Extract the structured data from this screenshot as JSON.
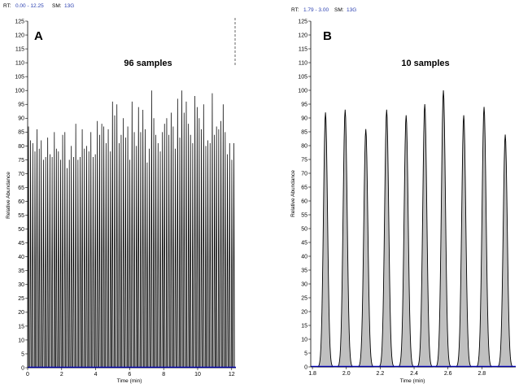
{
  "chart_data": [
    {
      "type": "line",
      "panel_label": "A",
      "title": "96 samples",
      "header": {
        "rt_label": "RT:",
        "rt_value": "0.00 - 12.25",
        "sm_label": "SM:",
        "sm_value": "13G"
      },
      "xlabel": "Time (min)",
      "ylabel": "Relative Abundance",
      "xlim": [
        0,
        12.25
      ],
      "ylim": [
        0,
        125
      ],
      "x_ticks": [
        "0",
        "2",
        "4",
        "6",
        "8",
        "10",
        "12"
      ],
      "y_ticks": [
        "0",
        "5",
        "10",
        "15",
        "20",
        "25",
        "30",
        "35",
        "40",
        "45",
        "50",
        "55",
        "60",
        "65",
        "70",
        "75",
        "80",
        "85",
        "90",
        "95",
        "100",
        "105",
        "110",
        "115",
        "120",
        "125"
      ],
      "line_color": "#000000",
      "baseline_color": "#0000ff",
      "series": [
        {
          "peak_rt": [
            0.05,
            0.17,
            0.3,
            0.43,
            0.55,
            0.68,
            0.8,
            0.93,
            1.06,
            1.18,
            1.31,
            1.44,
            1.57,
            1.69,
            1.81,
            1.94,
            2.06,
            2.19,
            2.32,
            2.45,
            2.57,
            2.7,
            2.83,
            2.96,
            3.09,
            3.21,
            3.34,
            3.47,
            3.6,
            3.72,
            3.85,
            3.98,
            4.1,
            4.23,
            4.36,
            4.48,
            4.61,
            4.74,
            4.87,
            4.99,
            5.12,
            5.25,
            5.38,
            5.5,
            5.63,
            5.76,
            5.89,
            6.01,
            6.14,
            6.27,
            6.4,
            6.52,
            6.65,
            6.78,
            6.91,
            7.03,
            7.16,
            7.29,
            7.42,
            7.54,
            7.67,
            7.8,
            7.93,
            8.05,
            8.18,
            8.31,
            8.44,
            8.56,
            8.69,
            8.82,
            8.95,
            9.07,
            9.2,
            9.33,
            9.46,
            9.58,
            9.71,
            9.84,
            9.97,
            10.09,
            10.22,
            10.35,
            10.48,
            10.6,
            10.73,
            10.86,
            10.99,
            11.11,
            11.24,
            11.37,
            11.5,
            11.62,
            11.75,
            11.88,
            12.01,
            12.13
          ],
          "peak_height": [
            87,
            82,
            81,
            78,
            86,
            79,
            82,
            75,
            76,
            83,
            77,
            76,
            85,
            79,
            78,
            75,
            84,
            85,
            72,
            75,
            80,
            76,
            88,
            75,
            76,
            86,
            79,
            80,
            78,
            85,
            76,
            77,
            89,
            84,
            88,
            87,
            81,
            86,
            78,
            96,
            91,
            95,
            81,
            84,
            90,
            83,
            87,
            75,
            96,
            85,
            80,
            94,
            85,
            93,
            86,
            74,
            79,
            100,
            90,
            84,
            81,
            78,
            85,
            88,
            90,
            84,
            92,
            87,
            79,
            97,
            83,
            100,
            92,
            96,
            88,
            84,
            81,
            98,
            94,
            90,
            86,
            95,
            80,
            82,
            81,
            99,
            84,
            87,
            86,
            89,
            95,
            85,
            77,
            81,
            75,
            81
          ],
          "peak_width": 0.035
        }
      ]
    },
    {
      "type": "area",
      "panel_label": "B",
      "title": "10 samples",
      "header": {
        "rt_label": "RT:",
        "rt_value": "1.79 - 3.00",
        "sm_label": "SM:",
        "sm_value": "13G"
      },
      "xlabel": "Time (min)",
      "ylabel": "Relative Abundance",
      "xlim": [
        1.79,
        3.0
      ],
      "ylim": [
        0,
        125
      ],
      "x_ticks": [
        "1.8",
        "2.0",
        "2.2",
        "2.4",
        "2.6",
        "2.8"
      ],
      "y_ticks": [
        "0",
        "5",
        "10",
        "15",
        "20",
        "25",
        "30",
        "35",
        "40",
        "45",
        "50",
        "55",
        "60",
        "65",
        "70",
        "75",
        "80",
        "85",
        "90",
        "95",
        "100",
        "105",
        "110",
        "115",
        "120",
        "125"
      ],
      "line_color": "#000000",
      "fill_color": "#c0c0c0",
      "baseline_color": "#0000ff",
      "series": [
        {
          "peak_rt": [
            1.877,
            1.993,
            2.115,
            2.238,
            2.353,
            2.463,
            2.573,
            2.693,
            2.813,
            2.938
          ],
          "peak_height": [
            92,
            93,
            86,
            93,
            91,
            95,
            100,
            91,
            94,
            84
          ],
          "peak_width": 0.012
        }
      ]
    }
  ]
}
